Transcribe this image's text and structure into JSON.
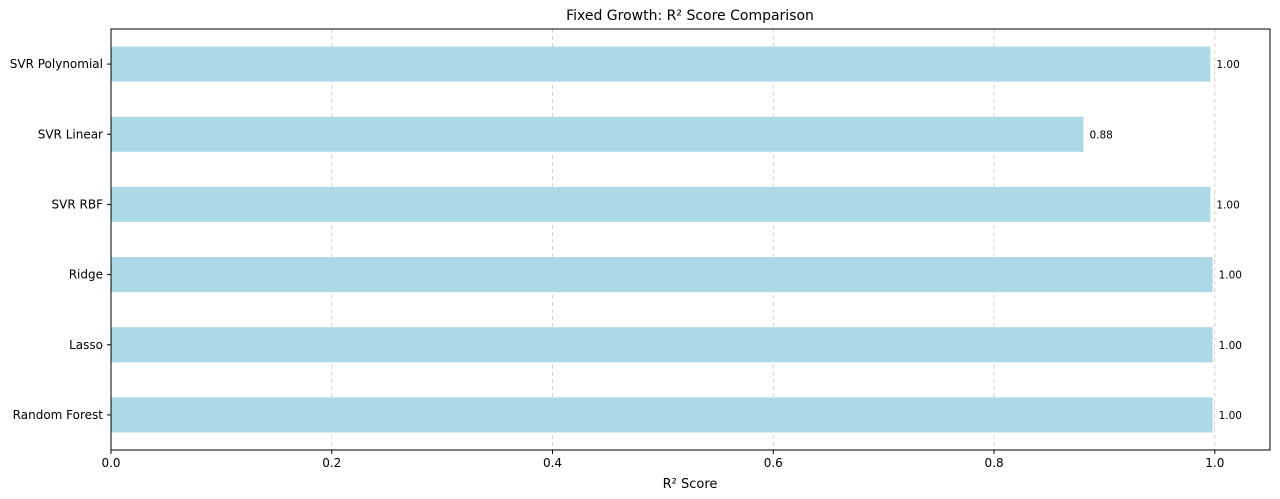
{
  "chart_data": {
    "type": "bar",
    "orientation": "horizontal",
    "title": "Fixed Growth: R² Score Comparison",
    "xlabel": "R² Score",
    "ylabel": "",
    "xlim": [
      0.0,
      1.05
    ],
    "xticks": [
      0.0,
      0.2,
      0.4,
      0.6,
      0.8,
      1.0
    ],
    "xtick_labels": [
      "0.0",
      "0.2",
      "0.4",
      "0.6",
      "0.8",
      "1.0"
    ],
    "grid": "vertical dashed",
    "bar_color": "#add8e6",
    "categories": [
      "SVR Polynomial",
      "SVR Linear",
      "SVR RBF",
      "Ridge",
      "Lasso",
      "Random Forest"
    ],
    "values": [
      0.996,
      0.881,
      0.996,
      0.998,
      0.998,
      0.998
    ],
    "data_labels": [
      "1.00",
      "0.88",
      "1.00",
      "1.00",
      "1.00",
      "1.00"
    ]
  }
}
